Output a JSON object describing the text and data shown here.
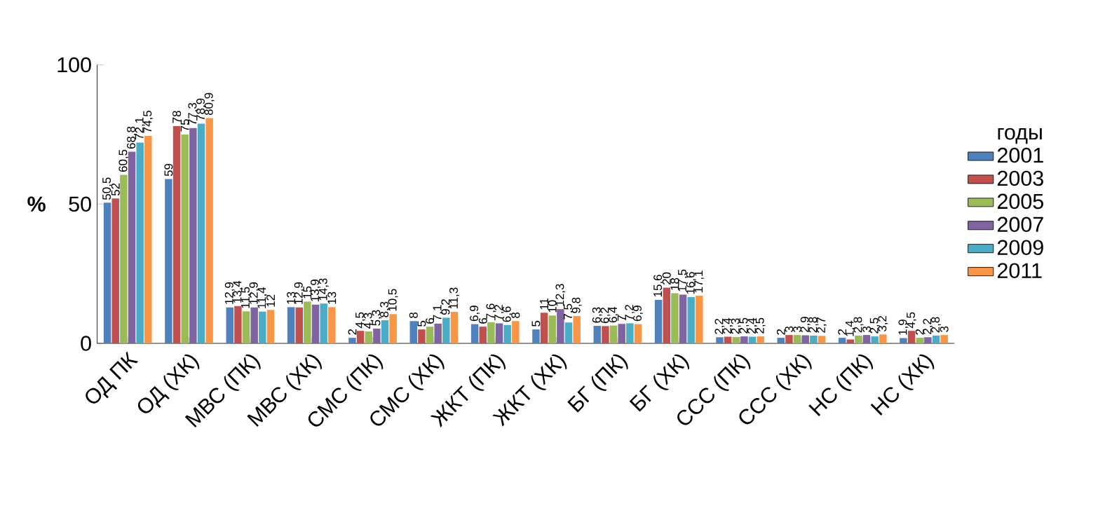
{
  "chart_data": {
    "type": "bar",
    "ylabel": "%",
    "legend_title": "годы",
    "legend": "right",
    "categories": [
      "ОД ПК",
      "ОД (ХК)",
      "МВС (ПК)",
      "МВС (ХК)",
      "СМС (ПК)",
      "СМС (ХК)",
      "ЖКТ (ПК)",
      "ЖКТ (ХК)",
      "БГ (ПК)",
      "БГ (ХК)",
      "ССС (ПК)",
      "ССС (ХК)",
      "НС (ПК)",
      "НС (ХК)"
    ],
    "ylim": [
      0,
      100
    ],
    "yticks": [
      0,
      50,
      100
    ],
    "series": [
      {
        "name": "2001",
        "color": "#4f81bd",
        "values": [
          50.5,
          59,
          12.9,
          13,
          2,
          8,
          6.9,
          5,
          6.3,
          15.6,
          2.2,
          2,
          2,
          1.9
        ],
        "value_labels": [
          "50,5",
          "59",
          "12,9",
          "13",
          "2",
          "8",
          "6,9",
          "5",
          "6,3",
          "15,6",
          "2,2",
          "2",
          "2",
          "1,9"
        ]
      },
      {
        "name": "2003",
        "color": "#c0504d",
        "values": [
          52,
          78,
          13.4,
          12.9,
          4.5,
          5,
          6,
          11,
          6.2,
          20,
          2.4,
          3,
          1.4,
          4.5
        ],
        "value_labels": [
          "52",
          "78",
          "13,4",
          "12,9",
          "4,5",
          "5",
          "6",
          "11",
          "6,2",
          "20",
          "2,4",
          "3",
          "1,4",
          "4,5"
        ]
      },
      {
        "name": "2005",
        "color": "#9bbb59",
        "values": [
          60.5,
          75,
          11.5,
          15,
          4.3,
          6,
          7.6,
          10,
          6.4,
          18,
          2.3,
          3,
          2.8,
          2
        ],
        "value_labels": [
          "60,5",
          "75",
          "11,5",
          "15",
          "4,3",
          "6",
          "7,6",
          "10",
          "6,4",
          "18",
          "2,3",
          "3",
          "2,8",
          "2"
        ]
      },
      {
        "name": "2007",
        "color": "#8064a2",
        "values": [
          68.8,
          77.3,
          12.9,
          13.9,
          5.3,
          7.1,
          7.2,
          12.3,
          7,
          17.5,
          2.5,
          2.9,
          3,
          2.2
        ],
        "value_labels": [
          "68,8",
          "77,3",
          "12,9",
          "13,9",
          "5,3",
          "7,1",
          "7,2",
          "12,3",
          "7",
          "17,5",
          "2,5",
          "2,9",
          "3",
          "2,2"
        ]
      },
      {
        "name": "2009",
        "color": "#4bacc6",
        "values": [
          72.1,
          78.9,
          11.4,
          14.3,
          8.3,
          9.2,
          6.6,
          7.5,
          7.2,
          16.6,
          2.4,
          2.8,
          2.5,
          2.8
        ],
        "value_labels": [
          "72,1",
          "78,9",
          "11,4",
          "14,3",
          "8,3",
          "9,2",
          "6,6",
          "7,5",
          "7,2",
          "16,6",
          "2,4",
          "2,8",
          "2,5",
          "2,8"
        ]
      },
      {
        "name": "2011",
        "color": "#f79646",
        "values": [
          74.5,
          80.9,
          12,
          13,
          10.5,
          11.3,
          8,
          9.8,
          6.9,
          17.1,
          2.5,
          2.7,
          3.2,
          3
        ],
        "value_labels": [
          "74,5",
          "80,9",
          "12",
          "13",
          "10,5",
          "11,3",
          "8",
          "9,8",
          "6,9",
          "17,1",
          "2,5",
          "2,7",
          "3,2",
          "3"
        ]
      }
    ]
  }
}
